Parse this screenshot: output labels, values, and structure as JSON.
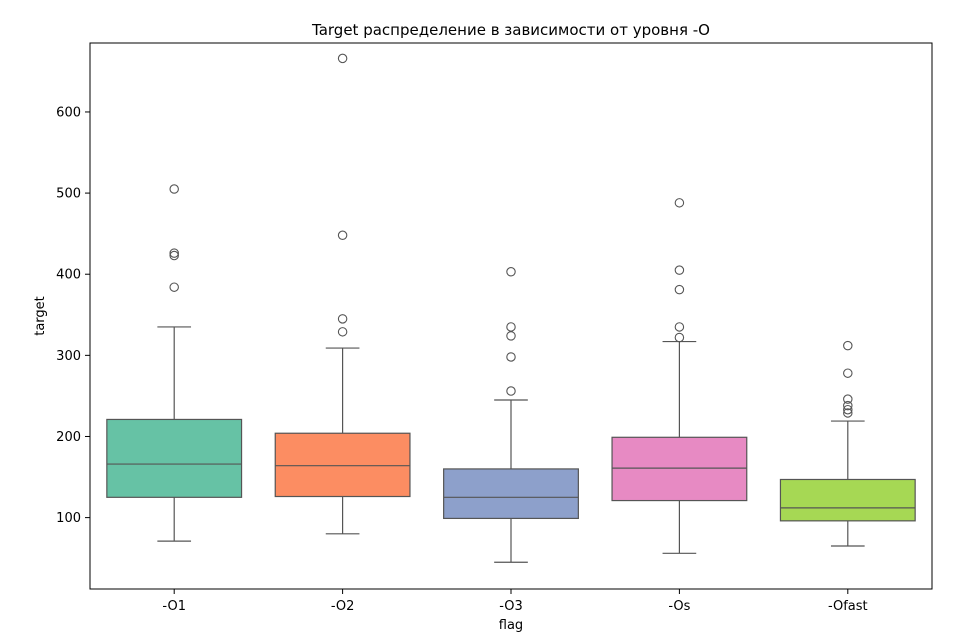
{
  "chart_data": {
    "type": "box",
    "title": "Target распределение в зависимости от уровня -O",
    "xlabel": "flag",
    "ylabel": "target",
    "ylim": [
      12,
      685
    ],
    "yticks": [
      100,
      200,
      300,
      400,
      500,
      600
    ],
    "grid": false,
    "categories": [
      "-O1",
      "-O2",
      "-O3",
      "-Os",
      "-Ofast"
    ],
    "boxes": [
      {
        "label": "-O1",
        "color": "#66c2a5",
        "whisker_low": 71,
        "q1": 125,
        "median": 166,
        "q3": 221,
        "whisker_high": 335,
        "outliers": [
          384,
          423,
          426,
          505
        ]
      },
      {
        "label": "-O2",
        "color": "#fc8d62",
        "whisker_low": 80,
        "q1": 126,
        "median": 164,
        "q3": 204,
        "whisker_high": 309,
        "outliers": [
          329,
          345,
          448,
          666
        ]
      },
      {
        "label": "-O3",
        "color": "#8da0cb",
        "whisker_low": 45,
        "q1": 99,
        "median": 125,
        "q3": 160,
        "whisker_high": 245,
        "outliers": [
          256,
          298,
          324,
          335,
          403
        ]
      },
      {
        "label": "-Os",
        "color": "#e78ac3",
        "whisker_low": 56,
        "q1": 121,
        "median": 161,
        "q3": 199,
        "whisker_high": 317,
        "outliers": [
          322,
          335,
          381,
          405,
          488
        ]
      },
      {
        "label": "-Ofast",
        "color": "#a6d854",
        "whisker_low": 65,
        "q1": 96,
        "median": 112,
        "q3": 147,
        "whisker_high": 219,
        "outliers": [
          229,
          233,
          238,
          246,
          278,
          312
        ]
      }
    ]
  }
}
